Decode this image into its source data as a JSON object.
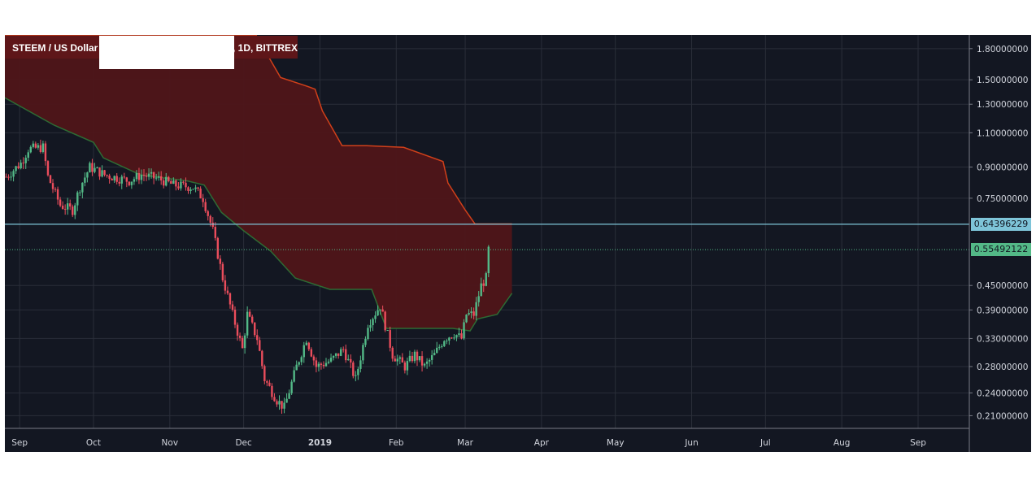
{
  "chart_data": {
    "type": "candlestick",
    "title": "STEEM / US Dollar",
    "title_suffix": ", 1D, BITTREX",
    "symbol": "STEEM / US Dollar",
    "interval": "1D",
    "exchange": "BITTREX",
    "scale": "log",
    "y_ticks": [
      "1.80000000",
      "1.50000000",
      "1.30000000",
      "1.10000000",
      "0.90000000",
      "0.75000000",
      "0.45000000",
      "0.39000000",
      "0.33000000",
      "0.28000000",
      "0.24000000",
      "0.21000000"
    ],
    "x_ticks": [
      "Sep",
      "Oct",
      "Nov",
      "Dec",
      "2019",
      "Feb",
      "Mar",
      "Apr",
      "May",
      "Jun",
      "Jul",
      "Aug",
      "Sep"
    ],
    "ylim": [
      0.195,
      1.95
    ],
    "horizontal_line": {
      "value": 0.64396229,
      "label": "0.64396229"
    },
    "last_price": {
      "value": 0.55492122,
      "label": "0.55492122"
    },
    "cloud_upper": [
      [
        "2018-08-26",
        1.95
      ],
      [
        "2018-12-06",
        1.95
      ],
      [
        "2018-12-16",
        1.52
      ],
      [
        "2018-12-26",
        1.45
      ],
      [
        "2018-12-30",
        1.42
      ],
      [
        "2019-01-02",
        1.25
      ],
      [
        "2019-01-10",
        1.02
      ],
      [
        "2019-01-20",
        1.02
      ],
      [
        "2019-02-04",
        1.01
      ],
      [
        "2019-02-20",
        0.93
      ],
      [
        "2019-02-22",
        0.82
      ],
      [
        "2019-03-01",
        0.7
      ],
      [
        "2019-03-05",
        0.645
      ],
      [
        "2019-03-20",
        0.645
      ]
    ],
    "cloud_lower": [
      [
        "2018-08-26",
        1.35
      ],
      [
        "2018-09-15",
        1.15
      ],
      [
        "2018-10-01",
        1.04
      ],
      [
        "2018-10-05",
        0.95
      ],
      [
        "2018-10-20",
        0.86
      ],
      [
        "2018-11-08",
        0.83
      ],
      [
        "2018-11-15",
        0.81
      ],
      [
        "2018-11-22",
        0.69
      ],
      [
        "2018-12-01",
        0.62
      ],
      [
        "2018-12-12",
        0.55
      ],
      [
        "2018-12-22",
        0.47
      ],
      [
        "2019-01-05",
        0.44
      ],
      [
        "2019-01-22",
        0.44
      ],
      [
        "2019-01-28",
        0.35
      ],
      [
        "2019-02-10",
        0.35
      ],
      [
        "2019-02-24",
        0.35
      ],
      [
        "2019-03-03",
        0.345
      ],
      [
        "2019-03-06",
        0.37
      ],
      [
        "2019-03-14",
        0.38
      ],
      [
        "2019-03-20",
        0.43
      ]
    ],
    "close_path": [
      [
        "2018-08-26",
        0.85
      ],
      [
        "2018-09-01",
        0.92
      ],
      [
        "2018-09-04",
        1.0
      ],
      [
        "2018-09-10",
        1.01
      ],
      [
        "2018-09-12",
        0.85
      ],
      [
        "2018-09-17",
        0.72
      ],
      [
        "2018-09-22",
        0.7
      ],
      [
        "2018-09-25",
        0.8
      ],
      [
        "2018-09-29",
        0.9
      ],
      [
        "2018-10-05",
        0.86
      ],
      [
        "2018-10-15",
        0.83
      ],
      [
        "2018-10-20",
        0.86
      ],
      [
        "2018-10-27",
        0.84
      ],
      [
        "2018-11-02",
        0.81
      ],
      [
        "2018-11-10",
        0.8
      ],
      [
        "2018-11-14",
        0.75
      ],
      [
        "2018-11-18",
        0.62
      ],
      [
        "2018-11-22",
        0.47
      ],
      [
        "2018-11-26",
        0.38
      ],
      [
        "2018-11-30",
        0.31
      ],
      [
        "2018-12-02",
        0.38
      ],
      [
        "2018-12-06",
        0.33
      ],
      [
        "2018-12-09",
        0.26
      ],
      [
        "2018-12-14",
        0.23
      ],
      [
        "2018-12-17",
        0.22
      ],
      [
        "2018-12-22",
        0.28
      ],
      [
        "2018-12-26",
        0.33
      ],
      [
        "2018-12-30",
        0.28
      ],
      [
        "2019-01-05",
        0.29
      ],
      [
        "2019-01-10",
        0.31
      ],
      [
        "2019-01-15",
        0.26
      ],
      [
        "2019-01-20",
        0.36
      ],
      [
        "2019-01-25",
        0.4
      ],
      [
        "2019-01-30",
        0.3
      ],
      [
        "2019-02-04",
        0.28
      ],
      [
        "2019-02-08",
        0.3
      ],
      [
        "2019-02-12",
        0.28
      ],
      [
        "2019-02-16",
        0.3
      ],
      [
        "2019-02-20",
        0.33
      ],
      [
        "2019-02-24",
        0.34
      ],
      [
        "2019-02-27",
        0.33
      ],
      [
        "2019-03-01",
        0.38
      ],
      [
        "2019-03-04",
        0.38
      ],
      [
        "2019-03-07",
        0.45
      ],
      [
        "2019-03-09",
        0.47
      ],
      [
        "2019-03-10",
        0.555
      ]
    ]
  },
  "colors": {
    "background": "#131722",
    "grid": "#2a2e39",
    "up": "#53b987",
    "down": "#eb4d5c",
    "cloud_fill": "#4f1519",
    "cloud_upper_line": "#d1401a",
    "cloud_lower_line": "#2e6b34",
    "hline": "#7ec4d8",
    "last_price": "#53b987",
    "text": "#d1d4dc"
  }
}
